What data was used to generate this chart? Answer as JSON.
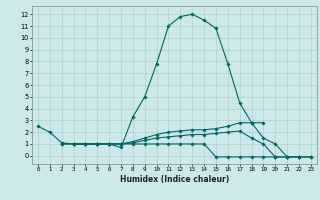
{
  "xlabel": "Humidex (Indice chaleur)",
  "bg_color": "#cce8e8",
  "grid_color": "#b0d0d0",
  "line_color": "#006868",
  "xlim": [
    -0.5,
    23.5
  ],
  "ylim": [
    -0.7,
    12.7
  ],
  "x_ticks": [
    0,
    1,
    2,
    3,
    4,
    5,
    6,
    7,
    8,
    9,
    10,
    11,
    12,
    13,
    14,
    15,
    16,
    17,
    18,
    19,
    20,
    21,
    22,
    23
  ],
  "y_ticks": [
    0,
    1,
    2,
    3,
    4,
    5,
    6,
    7,
    8,
    9,
    10,
    11,
    12
  ],
  "series": [
    {
      "x": [
        0,
        1,
        2,
        3,
        4,
        5,
        6,
        7,
        8,
        9,
        10,
        11,
        12,
        13,
        14,
        15,
        16,
        17,
        18,
        19,
        20,
        21,
        22
      ],
      "y": [
        2.5,
        2.0,
        1.1,
        1.0,
        1.0,
        1.0,
        1.0,
        0.7,
        3.3,
        5.0,
        7.8,
        11.0,
        11.8,
        12.0,
        11.5,
        10.8,
        7.8,
        4.5,
        2.8,
        1.5,
        1.0,
        -0.1,
        -0.1
      ]
    },
    {
      "x": [
        2,
        3,
        4,
        5,
        6,
        7,
        8,
        9,
        10,
        11,
        12,
        13,
        14,
        15,
        16,
        17,
        18,
        19
      ],
      "y": [
        1.0,
        1.0,
        1.0,
        1.0,
        1.0,
        1.0,
        1.2,
        1.5,
        1.8,
        2.0,
        2.1,
        2.2,
        2.2,
        2.3,
        2.5,
        2.8,
        2.8,
        2.8
      ]
    },
    {
      "x": [
        2,
        3,
        4,
        5,
        6,
        7,
        8,
        9,
        10,
        11,
        12,
        13,
        14,
        15,
        16,
        17,
        18,
        19,
        20,
        21,
        22,
        23
      ],
      "y": [
        1.0,
        1.0,
        1.0,
        1.0,
        1.0,
        1.0,
        1.1,
        1.3,
        1.5,
        1.6,
        1.7,
        1.8,
        1.8,
        1.9,
        2.0,
        2.1,
        1.5,
        1.0,
        -0.1,
        -0.1,
        -0.1,
        -0.1
      ]
    },
    {
      "x": [
        3,
        4,
        5,
        6,
        7,
        8,
        9,
        10,
        11,
        12,
        13,
        14,
        15,
        16,
        17,
        18,
        19,
        20,
        21,
        22,
        23
      ],
      "y": [
        1.0,
        1.0,
        1.0,
        1.0,
        1.0,
        1.0,
        1.0,
        1.0,
        1.0,
        1.0,
        1.0,
        1.0,
        -0.1,
        -0.1,
        -0.1,
        -0.1,
        -0.1,
        -0.1,
        -0.1,
        -0.1,
        -0.1
      ]
    }
  ]
}
